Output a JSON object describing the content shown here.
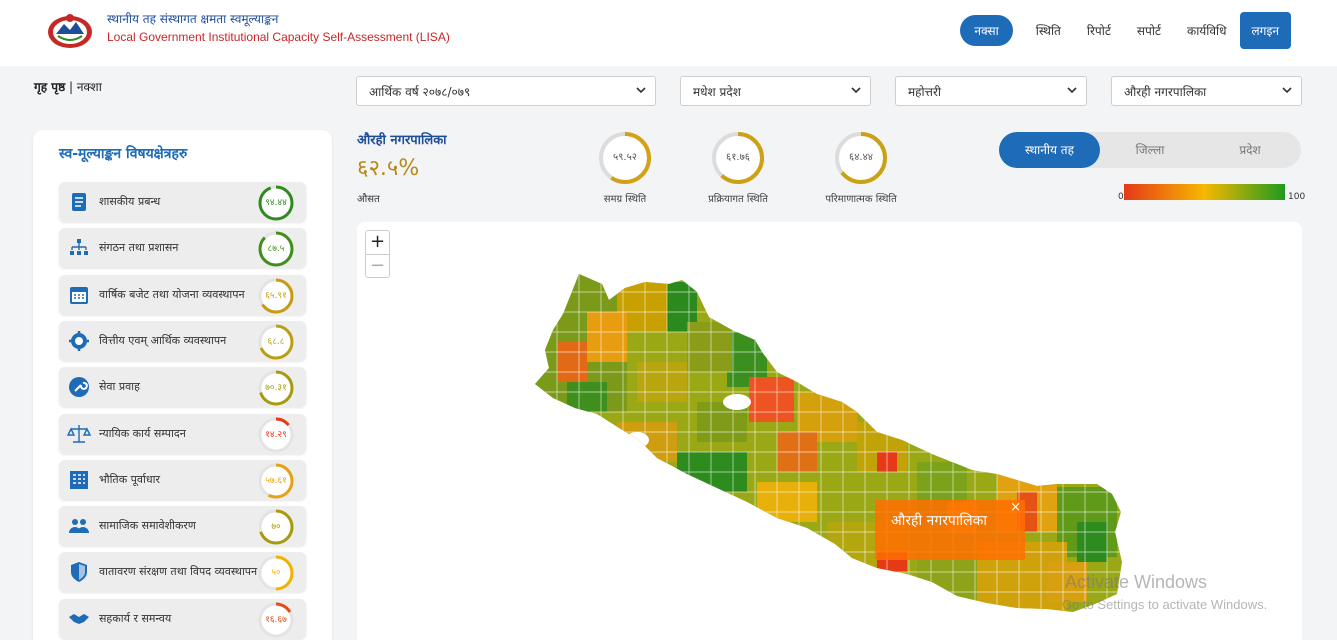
{
  "header": {
    "title_np": "स्थानीय तह संस्थागत क्षमता स्वमूल्याङ्कन",
    "title_en": "Local Government Institutional Capacity Self-Assessment (LISA)",
    "nav": [
      "नक्सा",
      "स्थिति",
      "रिपोर्ट",
      "सपोर्ट",
      "कार्यविधि"
    ],
    "login": "लगइन"
  },
  "breadcrumb": {
    "home": "गृह पृष्ठ",
    "current": "नक्शा"
  },
  "filters": {
    "fiscal_year": "आर्थिक वर्ष २०७८/०७९",
    "province": "मधेश प्रदेश",
    "district": "महोत्तरी",
    "municipality": "औरही नगरपालिका"
  },
  "panel": {
    "title": "स्व-मूल्याङ्कन विषयक्षेत्रहरु",
    "items": [
      {
        "label": "शासकीय प्रबन्ध",
        "score": "९४.४४",
        "pct": 94.44,
        "color": "#2e8b1e",
        "icon": "governance-doc-icon"
      },
      {
        "label": "संगठन तथा प्रशासन",
        "score": "८७.५",
        "pct": 87.5,
        "color": "#3f8f1a",
        "icon": "org-chart-icon"
      },
      {
        "label": "वार्षिक बजेट तथा योजना व्यवस्थापन",
        "score": "६५.९१",
        "pct": 65.91,
        "color": "#c79a14",
        "icon": "calendar-icon"
      },
      {
        "label": "वित्तीय एवम् आर्थिक व्यवस्थापन",
        "score": "६८.८",
        "pct": 68.8,
        "color": "#b8a012",
        "icon": "finance-gear-icon"
      },
      {
        "label": "सेवा प्रवाह",
        "score": "७०.३१",
        "pct": 70.31,
        "color": "#a89a10",
        "icon": "wrench-icon"
      },
      {
        "label": "न्यायिक कार्य सम्पादन",
        "score": "१४.२९",
        "pct": 14.29,
        "color": "#e53918",
        "icon": "scales-icon"
      },
      {
        "label": "भौतिक पूर्वाधार",
        "score": "५७.६१",
        "pct": 57.61,
        "color": "#e6a214",
        "icon": "building-icon"
      },
      {
        "label": "सामाजिक समावेशीकरण",
        "score": "७०",
        "pct": 70,
        "color": "#a89a10",
        "icon": "people-icon"
      },
      {
        "label": "वातावरण संरक्षण तथा विपद व्यवस्थापन",
        "score": "५०",
        "pct": 50,
        "color": "#f2b200",
        "icon": "shield-icon"
      },
      {
        "label": "सहकार्य र समन्वय",
        "score": "१६.६७",
        "pct": 16.67,
        "color": "#e84a14",
        "icon": "handshake-icon"
      }
    ]
  },
  "summary": {
    "name": "औरही नगरपालिका",
    "value": "६२.५%",
    "label": "औसत",
    "gauges": [
      {
        "value": "५९.५२",
        "pct": 59.52,
        "label": "समग्र स्थिति",
        "color": "#d4a014"
      },
      {
        "value": "६१.७६",
        "pct": 61.76,
        "label": "प्रक्रियागत स्थिति",
        "color": "#cfa014"
      },
      {
        "value": "६४.४४",
        "pct": 64.44,
        "label": "परिमाणात्मक स्थिति",
        "color": "#c9a214"
      }
    ]
  },
  "toggle": {
    "options": [
      "स्थानीय तह",
      "जिल्ला",
      "प्रदेश"
    ],
    "active": 0
  },
  "legend": {
    "min": "0",
    "max": "100",
    "colors": [
      "#e53918",
      "#f6b800",
      "#1f9a1f"
    ]
  },
  "map": {
    "zoom_in": "+",
    "zoom_out": "−",
    "tooltip": "औरही नगरपालिका",
    "close": "×"
  },
  "watermark": {
    "line1": "Activate Windows",
    "line2": "Go to Settings to activate Windows."
  }
}
